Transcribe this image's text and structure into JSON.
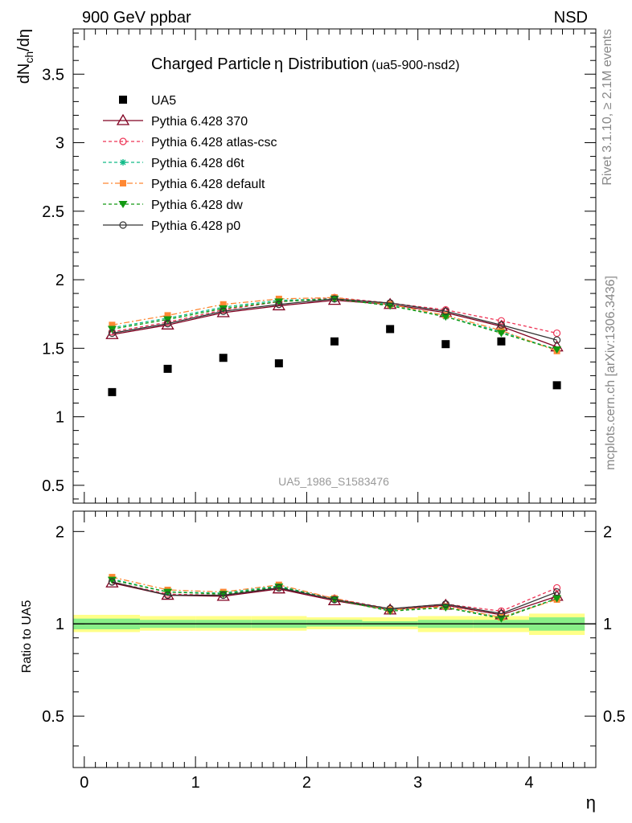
{
  "header": {
    "left": "900 GeV ppbar",
    "right": "NSD"
  },
  "side_labels": {
    "top": "Rivet 3.1.10, ≥ 2.1M events",
    "bottom": "mcplots.cern.ch [arXiv:1306.3436]"
  },
  "chart_data": [
    {
      "type": "scatter",
      "title": "Charged Particle",
      "title_symbol": "η",
      "title_rest": "Distribution",
      "title_tag": "(ua5-900-nsd2)",
      "ylabel_main": "dN",
      "ylabel_sub": "ch",
      "ylabel_tail": "/dη",
      "watermark": "UA5_1986_S1583476",
      "xlim": [
        -0.1,
        4.6
      ],
      "ylim": [
        0.37,
        3.83
      ],
      "yticks": [
        "0.5",
        "1",
        "1.5",
        "2",
        "2.5",
        "3",
        "3.5"
      ],
      "x": [
        0.25,
        0.75,
        1.25,
        1.75,
        2.25,
        2.75,
        3.25,
        3.75,
        4.25
      ],
      "series": [
        {
          "name": "UA5",
          "color": "#000000",
          "marker": "square",
          "line": "none",
          "values": [
            1.18,
            1.35,
            1.43,
            1.39,
            1.55,
            1.64,
            1.53,
            1.55,
            1.23
          ]
        },
        {
          "name": "Pythia 6.428 370",
          "color": "#800020",
          "marker": "triangle-open",
          "line": "solid",
          "values": [
            1.6,
            1.67,
            1.76,
            1.81,
            1.85,
            1.82,
            1.76,
            1.66,
            1.51
          ]
        },
        {
          "name": "Pythia 6.428 atlas-csc",
          "color": "#ee3355",
          "marker": "circle-open",
          "line": "dashed",
          "values": [
            1.62,
            1.69,
            1.78,
            1.84,
            1.87,
            1.83,
            1.78,
            1.7,
            1.61
          ]
        },
        {
          "name": "Pythia 6.428 d6t",
          "color": "#11bb88",
          "marker": "star",
          "line": "dashed",
          "values": [
            1.65,
            1.72,
            1.8,
            1.85,
            1.86,
            1.82,
            1.73,
            1.62,
            1.49
          ]
        },
        {
          "name": "Pythia 6.428 default",
          "color": "#ff8833",
          "marker": "square-filled",
          "line": "dashdot",
          "values": [
            1.67,
            1.74,
            1.82,
            1.86,
            1.87,
            1.82,
            1.74,
            1.63,
            1.48
          ]
        },
        {
          "name": "Pythia 6.428 dw",
          "color": "#119911",
          "marker": "triangle-down",
          "line": "dashed",
          "values": [
            1.64,
            1.71,
            1.79,
            1.84,
            1.86,
            1.81,
            1.73,
            1.61,
            1.49
          ]
        },
        {
          "name": "Pythia 6.428 p0",
          "color": "#333333",
          "marker": "circle-open",
          "line": "solid",
          "values": [
            1.61,
            1.68,
            1.77,
            1.82,
            1.86,
            1.83,
            1.77,
            1.67,
            1.56
          ]
        }
      ],
      "legend_placement": "top-left"
    },
    {
      "type": "scatter",
      "ylabel": "Ratio to UA5",
      "xlabel": "η",
      "xlim": [
        -0.1,
        4.6
      ],
      "ylim": [
        0.34,
        2.33
      ],
      "xticks": [
        "0",
        "1",
        "2",
        "3",
        "4"
      ],
      "yticks": [
        "0.5",
        "1",
        "2"
      ],
      "band_bins": [
        [
          -0.1,
          0.5
        ],
        [
          0.5,
          1.0
        ],
        [
          1.0,
          1.5
        ],
        [
          1.5,
          2.0
        ],
        [
          2.0,
          2.5
        ],
        [
          2.5,
          3.0
        ],
        [
          3.0,
          3.5
        ],
        [
          3.5,
          4.0
        ],
        [
          4.0,
          4.5
        ]
      ],
      "band_yellow": [
        [
          0.94,
          1.07
        ],
        [
          0.95,
          1.06
        ],
        [
          0.95,
          1.06
        ],
        [
          0.95,
          1.06
        ],
        [
          0.96,
          1.05
        ],
        [
          0.96,
          1.05
        ],
        [
          0.94,
          1.06
        ],
        [
          0.94,
          1.06
        ],
        [
          0.92,
          1.08
        ]
      ],
      "band_green": [
        [
          0.96,
          1.04
        ],
        [
          0.97,
          1.03
        ],
        [
          0.97,
          1.03
        ],
        [
          0.97,
          1.03
        ],
        [
          0.98,
          1.03
        ],
        [
          0.98,
          1.02
        ],
        [
          0.97,
          1.03
        ],
        [
          0.97,
          1.03
        ],
        [
          0.95,
          1.05
        ]
      ],
      "x": [
        0.25,
        0.75,
        1.25,
        1.75,
        2.25,
        2.75,
        3.25,
        3.75,
        4.25
      ],
      "series": [
        {
          "name": "Pythia 6.428 370",
          "values": [
            1.36,
            1.24,
            1.23,
            1.3,
            1.19,
            1.11,
            1.15,
            1.07,
            1.23
          ]
        },
        {
          "name": "Pythia 6.428 atlas-csc",
          "values": [
            1.37,
            1.25,
            1.24,
            1.32,
            1.21,
            1.12,
            1.16,
            1.1,
            1.31
          ]
        },
        {
          "name": "Pythia 6.428 d6t",
          "values": [
            1.4,
            1.27,
            1.26,
            1.33,
            1.2,
            1.11,
            1.13,
            1.05,
            1.21
          ]
        },
        {
          "name": "Pythia 6.428 default",
          "values": [
            1.42,
            1.29,
            1.27,
            1.34,
            1.21,
            1.11,
            1.14,
            1.05,
            1.2
          ]
        },
        {
          "name": "Pythia 6.428 dw",
          "values": [
            1.39,
            1.27,
            1.25,
            1.32,
            1.2,
            1.1,
            1.13,
            1.04,
            1.21
          ]
        },
        {
          "name": "Pythia 6.428 p0",
          "values": [
            1.37,
            1.24,
            1.24,
            1.31,
            1.2,
            1.12,
            1.16,
            1.08,
            1.27
          ]
        }
      ]
    }
  ]
}
